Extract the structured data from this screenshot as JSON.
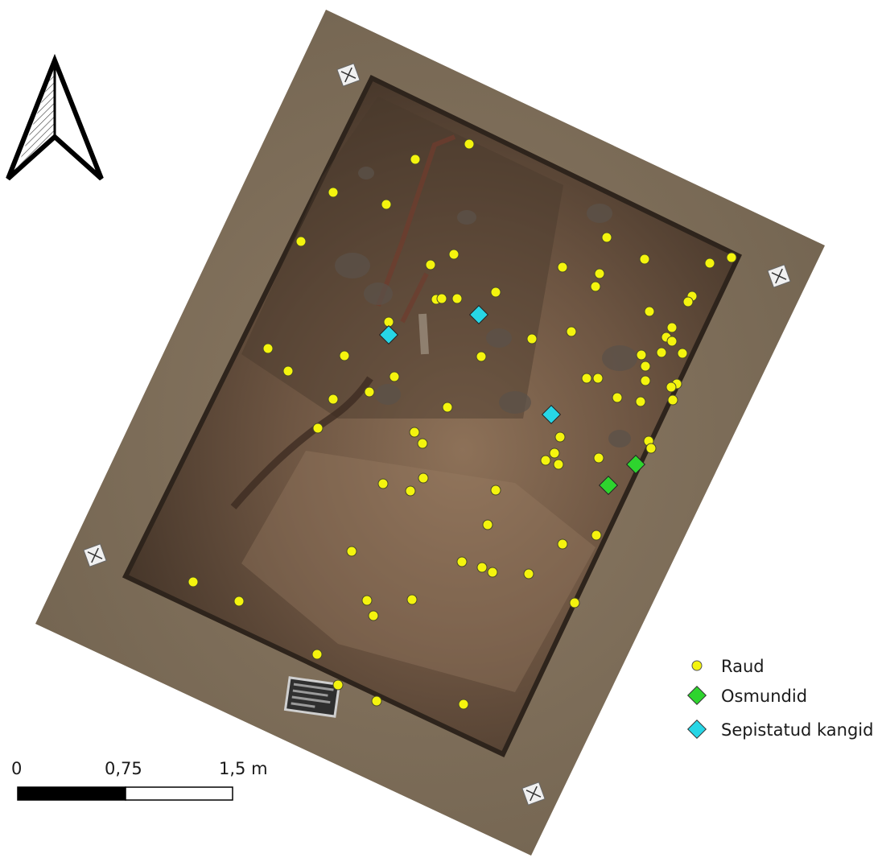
{
  "map": {
    "features": {
      "raud": [
        [
          583,
          179
        ],
        [
          516,
          198
        ],
        [
          414,
          239
        ],
        [
          480,
          254
        ],
        [
          374,
          300
        ],
        [
          754,
          295
        ],
        [
          535,
          329
        ],
        [
          564,
          316
        ],
        [
          699,
          332
        ],
        [
          801,
          322
        ],
        [
          882,
          327
        ],
        [
          909,
          320
        ],
        [
          745,
          340
        ],
        [
          740,
          356
        ],
        [
          616,
          363
        ],
        [
          542,
          372
        ],
        [
          549,
          371
        ],
        [
          568,
          371
        ],
        [
          807,
          387
        ],
        [
          860,
          368
        ],
        [
          855,
          375
        ],
        [
          483,
          400
        ],
        [
          835,
          407
        ],
        [
          710,
          412
        ],
        [
          828,
          419
        ],
        [
          661,
          421
        ],
        [
          835,
          424
        ],
        [
          333,
          433
        ],
        [
          428,
          442
        ],
        [
          598,
          443
        ],
        [
          797,
          441
        ],
        [
          822,
          438
        ],
        [
          848,
          439
        ],
        [
          802,
          455
        ],
        [
          358,
          461
        ],
        [
          490,
          468
        ],
        [
          729,
          470
        ],
        [
          743,
          470
        ],
        [
          802,
          473
        ],
        [
          841,
          477
        ],
        [
          834,
          481
        ],
        [
          459,
          487
        ],
        [
          414,
          496
        ],
        [
          767,
          494
        ],
        [
          796,
          499
        ],
        [
          836,
          497
        ],
        [
          556,
          506
        ],
        [
          395,
          532
        ],
        [
          515,
          537
        ],
        [
          525,
          551
        ],
        [
          696,
          543
        ],
        [
          806,
          548
        ],
        [
          809,
          557
        ],
        [
          689,
          563
        ],
        [
          744,
          569
        ],
        [
          678,
          572
        ],
        [
          694,
          577
        ],
        [
          526,
          594
        ],
        [
          476,
          601
        ],
        [
          510,
          610
        ],
        [
          616,
          609
        ],
        [
          606,
          652
        ],
        [
          741,
          665
        ],
        [
          699,
          676
        ],
        [
          437,
          685
        ],
        [
          574,
          698
        ],
        [
          599,
          705
        ],
        [
          612,
          711
        ],
        [
          657,
          713
        ],
        [
          240,
          723
        ],
        [
          297,
          747
        ],
        [
          456,
          746
        ],
        [
          512,
          745
        ],
        [
          714,
          749
        ],
        [
          464,
          765
        ],
        [
          394,
          813
        ],
        [
          420,
          851
        ],
        [
          468,
          871
        ],
        [
          576,
          875
        ]
      ],
      "osmundid": [
        [
          790,
          577
        ],
        [
          756,
          603
        ]
      ],
      "sepistatud_kangid": [
        [
          595,
          391
        ],
        [
          483,
          416
        ],
        [
          685,
          515
        ]
      ]
    },
    "legend": [
      {
        "label": "Raud",
        "symbol": "yellow-circle",
        "color": "#f4f40e"
      },
      {
        "label": "Osmundid",
        "symbol": "green-diamond",
        "color": "#2ed42e"
      },
      {
        "label": "Sepistatud kangid",
        "symbol": "cyan-diamond",
        "color": "#27d6e6"
      }
    ],
    "scale_bar": {
      "labels": [
        "0",
        "0,75",
        "1,5 m"
      ],
      "segment_colors": [
        "#000000",
        "#ffffff"
      ]
    },
    "north_arrow": {
      "icon": "north-arrow-icon"
    },
    "colors": {
      "ground": "#7e6c57",
      "trench": "#4f3e30",
      "trench_light": "#8a6f56",
      "marker": "#f0f0f0"
    }
  }
}
